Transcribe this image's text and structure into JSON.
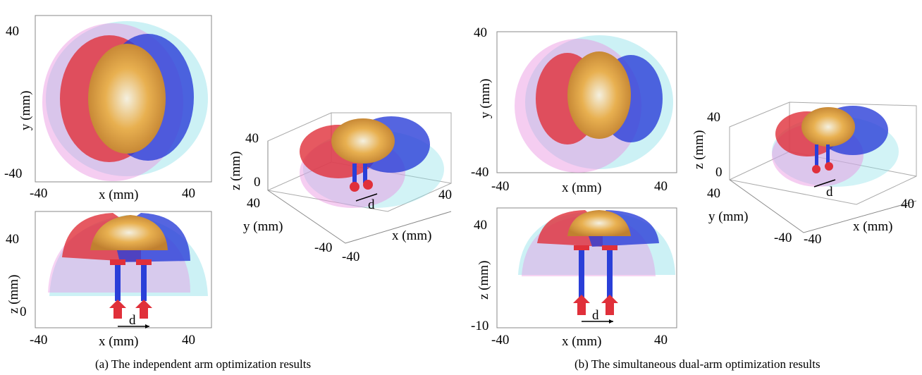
{
  "panels": [
    {
      "caption": "(a) The independent arm optimization results",
      "xy": {
        "xlabel": "x (mm)",
        "ylabel": "y (mm)",
        "xticks": [
          "-40",
          "40"
        ],
        "yticks": [
          "40",
          "-40"
        ]
      },
      "xz": {
        "xlabel": "x (mm)",
        "ylabel": "z (mm)",
        "xticks": [
          "-40",
          "40"
        ],
        "yticks": [
          "40",
          "0"
        ],
        "annotation": "d"
      },
      "iso": {
        "xlabel": "x (mm)",
        "ylabel": "y (mm)",
        "zlabel": "z (mm)",
        "xticks": [
          "-40",
          "40"
        ],
        "yticks": [
          "40",
          "-40"
        ],
        "zticks": [
          "40",
          "0"
        ],
        "annotation": "d"
      }
    },
    {
      "caption": "(b) The simultaneous dual-arm optimization results",
      "xy": {
        "xlabel": "x (mm)",
        "ylabel": "y (mm)",
        "xticks": [
          "-40",
          "40"
        ],
        "yticks": [
          "40",
          "-40"
        ]
      },
      "xz": {
        "xlabel": "x (mm)",
        "ylabel": "z (mm)",
        "xticks": [
          "-40",
          "40"
        ],
        "yticks": [
          "40",
          "-10"
        ],
        "annotation": "d"
      },
      "iso": {
        "xlabel": "x (mm)",
        "ylabel": "y (mm)",
        "zlabel": "z (mm)",
        "xticks": [
          "-40",
          "40"
        ],
        "yticks": [
          "40",
          "-40"
        ],
        "zticks": [
          "40",
          "0"
        ],
        "annotation": "d"
      }
    }
  ],
  "colors": {
    "left_arm": "#e0303a",
    "right_arm": "#2a3fd8",
    "overlap": "#e8a040",
    "pink": "#e890e0",
    "cyan": "#8ee0e8"
  }
}
